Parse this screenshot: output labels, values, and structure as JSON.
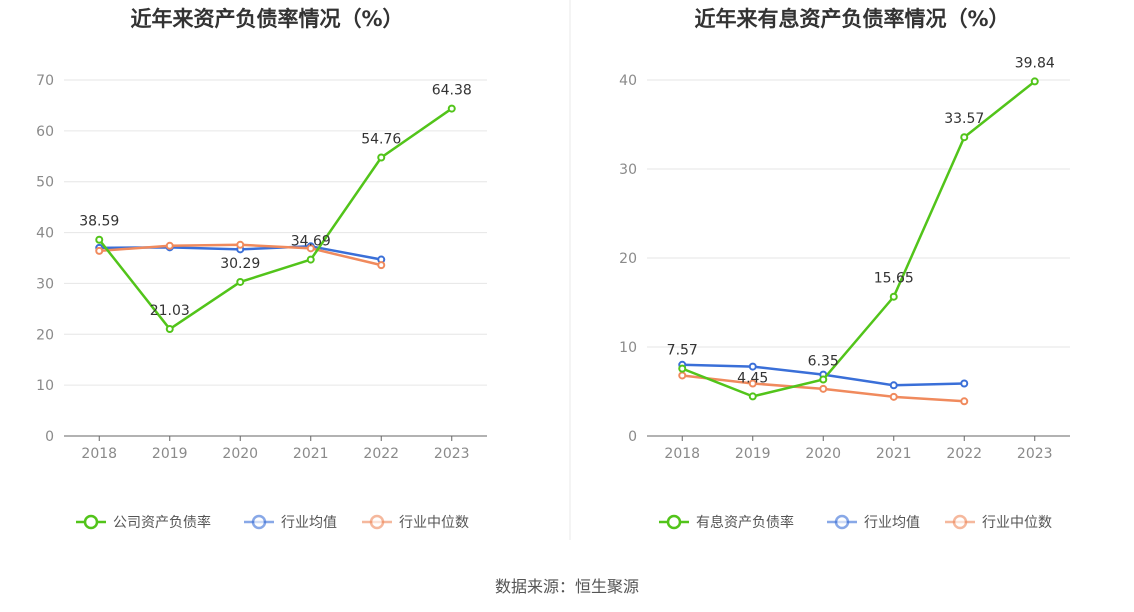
{
  "source": "数据来源：恒生聚源",
  "colors": {
    "green": "#52c41a",
    "blue": "#3a6fd8",
    "orange": "#f08a5d"
  },
  "chart_data": [
    {
      "type": "line",
      "title": "近年来资产负债率情况（%）",
      "x": [
        "2018",
        "2019",
        "2020",
        "2021",
        "2022",
        "2023"
      ],
      "ylim": [
        0,
        70
      ],
      "yticks": [
        0,
        10,
        20,
        30,
        40,
        50,
        60,
        70
      ],
      "grid": true,
      "legend_position": "bottom",
      "series": [
        {
          "name": "公司资产负债率",
          "color": "#52c41a",
          "values": [
            38.59,
            21.03,
            30.29,
            34.69,
            54.76,
            64.38
          ],
          "labels": [
            "38.59",
            "21.03",
            "30.29",
            "34.69",
            "54.76",
            "64.38"
          ]
        },
        {
          "name": "行业均值",
          "color": "#3a6fd8",
          "values": [
            37.0,
            37.1,
            36.7,
            37.3,
            34.7,
            null
          ]
        },
        {
          "name": "行业中位数",
          "color": "#f08a5d",
          "values": [
            36.4,
            37.4,
            37.6,
            36.9,
            33.6,
            null
          ]
        }
      ]
    },
    {
      "type": "line",
      "title": "近年来有息资产负债率情况（%）",
      "x": [
        "2018",
        "2019",
        "2020",
        "2021",
        "2022",
        "2023"
      ],
      "ylim": [
        0,
        40
      ],
      "yticks": [
        0,
        10,
        20,
        30,
        40
      ],
      "grid": true,
      "legend_position": "bottom",
      "series": [
        {
          "name": "有息资产负债率",
          "color": "#52c41a",
          "values": [
            7.57,
            4.45,
            6.35,
            15.65,
            33.57,
            39.84
          ],
          "labels": [
            "7.57",
            "4.45",
            "6.35",
            "15.65",
            "33.57",
            "39.84"
          ]
        },
        {
          "name": "行业均值",
          "color": "#3a6fd8",
          "values": [
            8.0,
            7.8,
            6.9,
            5.7,
            5.9,
            null
          ]
        },
        {
          "name": "行业中位数",
          "color": "#f08a5d",
          "values": [
            6.8,
            5.9,
            5.3,
            4.4,
            3.9,
            null
          ]
        }
      ]
    }
  ]
}
